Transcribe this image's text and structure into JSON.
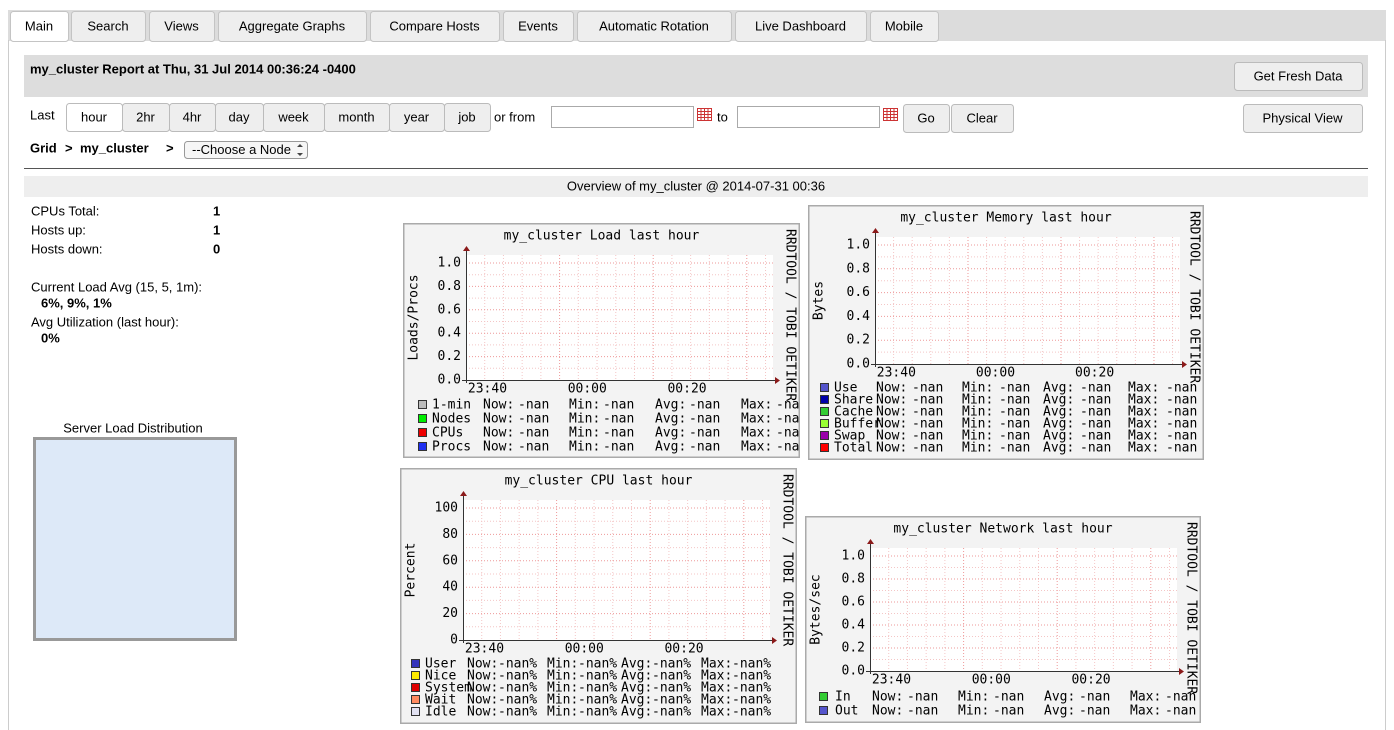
{
  "tabs": [
    "Main",
    "Search",
    "Views",
    "Aggregate Graphs",
    "Compare Hosts",
    "Events",
    "Automatic Rotation",
    "Live Dashboard",
    "Mobile"
  ],
  "header": {
    "title": "my_cluster Report at Thu, 31 Jul 2014 00:36:24 -0400",
    "fresh_button": "Get Fresh Data"
  },
  "range": {
    "label": "Last",
    "options": [
      "hour",
      "2hr",
      "4hr",
      "day",
      "week",
      "month",
      "year",
      "job"
    ],
    "from_label": "or from",
    "to_label": "to",
    "go": "Go",
    "clear": "Clear",
    "physical_view": "Physical View"
  },
  "breadcrumb": {
    "grid": "Grid",
    "separator": ">",
    "cluster": "my_cluster",
    "node_select": "--Choose a Node"
  },
  "overview": {
    "title": "Overview of my_cluster @ 2014-07-31 00:36",
    "stats": [
      {
        "label": "CPUs Total:",
        "value": "1"
      },
      {
        "label": "Hosts up:",
        "value": "1"
      },
      {
        "label": "Hosts down:",
        "value": "0"
      }
    ],
    "load_label": "Current Load Avg (15, 5, 1m):",
    "load_value": "6%, 9%, 1%",
    "util_label": "Avg Utilization (last hour):",
    "util_value": "0%",
    "distribution_title": "Server Load Distribution"
  },
  "graphs": [
    {
      "title": "my_cluster Load last hour",
      "ylabel": "Loads/Procs",
      "watermark": "RRDTOOL / TOBI OETIKER",
      "yticks": [
        "0.0",
        "0.2",
        "0.4",
        "0.6",
        "0.8",
        "1.0"
      ],
      "xticks": [
        "23:40",
        "00:00",
        "00:20"
      ],
      "stat_labels": [
        "Now:",
        "Min:",
        "Avg:",
        "Max:"
      ],
      "legend": [
        {
          "name": "1-min",
          "color": "#bbbbbb",
          "values": [
            "-nan",
            "-nan",
            "-nan",
            "-nan"
          ]
        },
        {
          "name": "Nodes",
          "color": "#00ee00",
          "values": [
            "-nan",
            "-nan",
            "-nan",
            "-nan"
          ]
        },
        {
          "name": "CPUs",
          "color": "#ee0000",
          "values": [
            "-nan",
            "-nan",
            "-nan",
            "-nan"
          ]
        },
        {
          "name": "Procs",
          "color": "#2030f0",
          "values": [
            "-nan",
            "-nan",
            "-nan",
            "-nan"
          ]
        }
      ]
    },
    {
      "title": "my_cluster Memory last hour",
      "ylabel": "Bytes",
      "watermark": "RRDTOOL / TOBI OETIKER",
      "yticks": [
        "0.0",
        "0.2",
        "0.4",
        "0.6",
        "0.8",
        "1.0"
      ],
      "xticks": [
        "23:40",
        "00:00",
        "00:20"
      ],
      "stat_labels": [
        "Now:",
        "Min:",
        "Avg:",
        "Max:"
      ],
      "legend": [
        {
          "name": "Use",
          "color": "#5555cc",
          "values": [
            "-nan",
            "-nan",
            "-nan",
            "-nan"
          ]
        },
        {
          "name": "Share",
          "color": "#0000aa",
          "values": [
            "-nan",
            "-nan",
            "-nan",
            "-nan"
          ]
        },
        {
          "name": "Cache",
          "color": "#33cc33",
          "values": [
            "-nan",
            "-nan",
            "-nan",
            "-nan"
          ]
        },
        {
          "name": "Buffer",
          "color": "#99ff33",
          "values": [
            "-nan",
            "-nan",
            "-nan",
            "-nan"
          ]
        },
        {
          "name": "Swap",
          "color": "#9900aa",
          "values": [
            "-nan",
            "-nan",
            "-nan",
            "-nan"
          ]
        },
        {
          "name": "Total",
          "color": "#ff0000",
          "values": [
            "-nan",
            "-nan",
            "-nan",
            "-nan"
          ]
        }
      ]
    },
    {
      "title": "my_cluster CPU last hour",
      "ylabel": "Percent",
      "watermark": "RRDTOOL / TOBI OETIKER",
      "yticks": [
        "0",
        "20",
        "40",
        "60",
        "80",
        "100"
      ],
      "xticks": [
        "23:40",
        "00:00",
        "00:20"
      ],
      "stat_labels": [
        "Now:",
        "Min:",
        "Avg:",
        "Max:"
      ],
      "legend": [
        {
          "name": "User",
          "color": "#3333bb",
          "values": [
            "-nan%",
            "-nan%",
            "-nan%",
            "-nan%"
          ]
        },
        {
          "name": "Nice",
          "color": "#ffea00",
          "values": [
            "-nan%",
            "-nan%",
            "-nan%",
            "-nan%"
          ]
        },
        {
          "name": "System",
          "color": "#dd0000",
          "values": [
            "-nan%",
            "-nan%",
            "-nan%",
            "-nan%"
          ]
        },
        {
          "name": "Wait",
          "color": "#ff8a60",
          "values": [
            "-nan%",
            "-nan%",
            "-nan%",
            "-nan%"
          ]
        },
        {
          "name": "Idle",
          "color": "#e2e2f2",
          "values": [
            "-nan%",
            "-nan%",
            "-nan%",
            "-nan%"
          ]
        }
      ]
    },
    {
      "title": "my_cluster Network last hour",
      "ylabel": "Bytes/sec",
      "watermark": "RRDTOOL / TOBI OETIKER",
      "yticks": [
        "0.0",
        "0.2",
        "0.4",
        "0.6",
        "0.8",
        "1.0"
      ],
      "xticks": [
        "23:40",
        "00:00",
        "00:20"
      ],
      "stat_labels": [
        "Now:",
        "Min:",
        "Avg:",
        "Max:"
      ],
      "legend": [
        {
          "name": "In",
          "color": "#33cc33",
          "values": [
            "-nan",
            "-nan",
            "-nan",
            "-nan"
          ]
        },
        {
          "name": "Out",
          "color": "#5555cc",
          "values": [
            "-nan",
            "-nan",
            "-nan",
            "-nan"
          ]
        }
      ]
    }
  ]
}
